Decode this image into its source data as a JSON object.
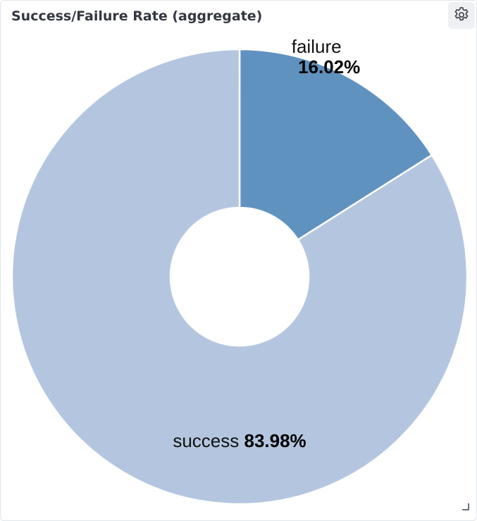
{
  "panel": {
    "title": "Success/Failure Rate (aggregate)",
    "options_icon": "gear-icon",
    "resize_icon": "resize-handle-icon"
  },
  "chart_data": {
    "type": "pie",
    "donut": true,
    "title": "Success/Failure Rate (aggregate)",
    "slices": [
      {
        "label": "failure",
        "value": 16.02,
        "display": "16.02%",
        "color": "#6092c0"
      },
      {
        "label": "success",
        "value": 83.98,
        "display": "83.98%",
        "color": "#b4c6df"
      }
    ],
    "start_angle": "12 o'clock",
    "direction": "clockwise",
    "legend": "none",
    "labels": "inside slices"
  }
}
